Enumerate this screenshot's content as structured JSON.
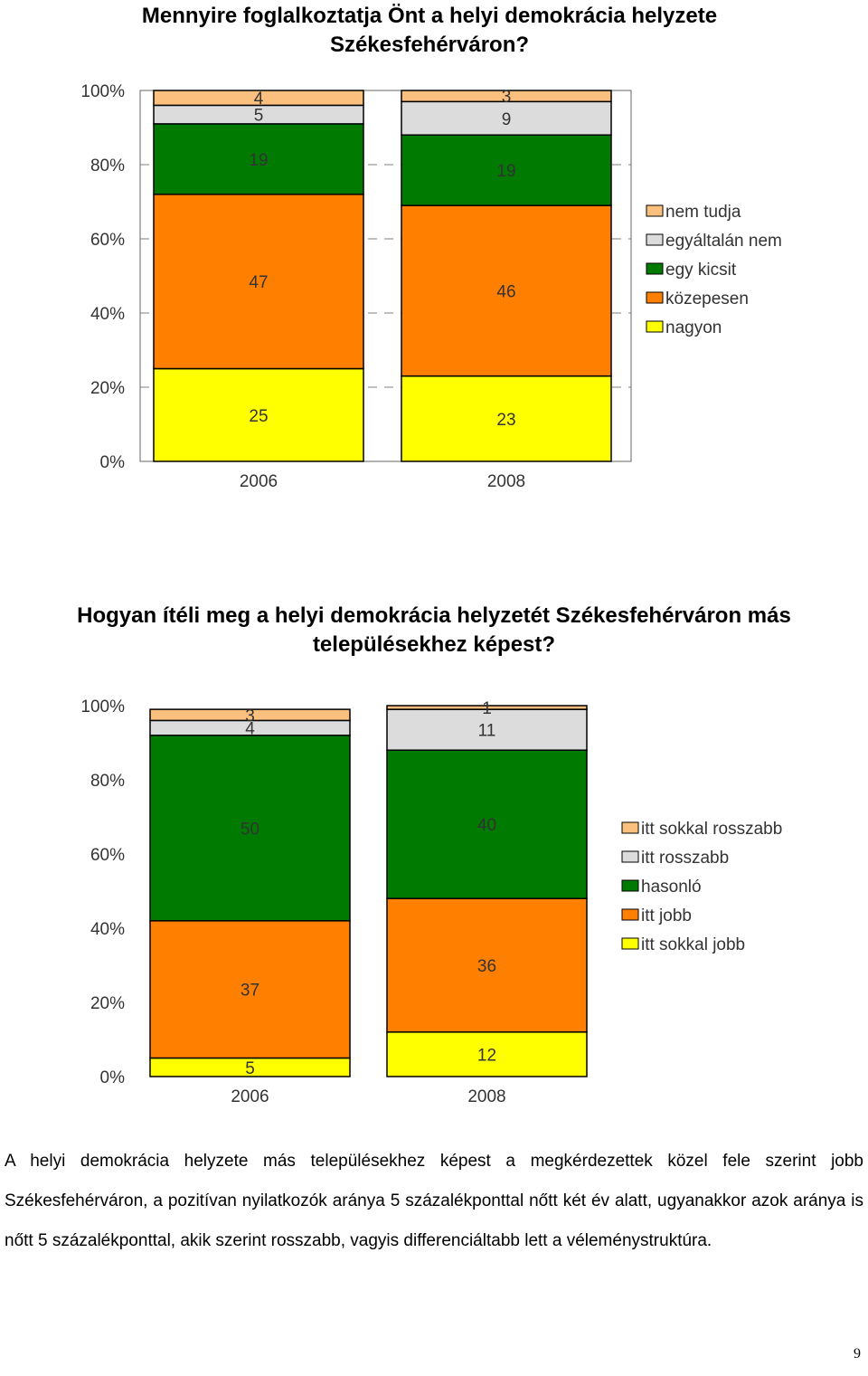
{
  "colors": {
    "nem_tudja": "#fcc07e",
    "egyaltalan_nem": "#dcdcdc",
    "egy_kicsit": "#007a00",
    "kozepesen": "#ff7f00",
    "nagyon": "#ffff00"
  },
  "chart_data": [
    {
      "type": "bar",
      "stacked": true,
      "percent_stacked": true,
      "title": "Mennyire foglalkoztatja Önt a helyi demokrácia helyzete Székesfehérváron?",
      "categories": [
        "2006",
        "2008"
      ],
      "series": [
        {
          "name": "nagyon",
          "values": [
            25,
            23
          ],
          "color": "#ffff00"
        },
        {
          "name": "közepesen",
          "values": [
            47,
            46
          ],
          "color": "#ff7f00"
        },
        {
          "name": "egy kicsit",
          "values": [
            19,
            19
          ],
          "color": "#007a00"
        },
        {
          "name": "egyáltalán nem",
          "values": [
            5,
            9
          ],
          "color": "#dcdcdc"
        },
        {
          "name": "nem tudja",
          "values": [
            4,
            3
          ],
          "color": "#fcc07e"
        }
      ],
      "legend_order": [
        "nem tudja",
        "egyáltalán nem",
        "egy kicsit",
        "közepesen",
        "nagyon"
      ],
      "ytick_labels": [
        "0%",
        "20%",
        "40%",
        "60%",
        "80%",
        "100%"
      ],
      "ylim": [
        0,
        100
      ],
      "grid": "dashed horizontal",
      "legend_position": "right"
    },
    {
      "type": "bar",
      "stacked": true,
      "percent_stacked": true,
      "title": "Hogyan ítéli meg a helyi demokrácia helyzetét Székesfehérváron más településekhez képest?",
      "categories": [
        "2006",
        "2008"
      ],
      "series": [
        {
          "name": "itt sokkal jobb",
          "values": [
            5,
            12
          ],
          "color": "#ffff00"
        },
        {
          "name": "itt jobb",
          "values": [
            37,
            36
          ],
          "color": "#ff7f00"
        },
        {
          "name": "hasonló",
          "values": [
            50,
            40
          ],
          "color": "#007a00"
        },
        {
          "name": "itt rosszabb",
          "values": [
            4,
            11
          ],
          "color": "#dcdcdc"
        },
        {
          "name": "itt sokkal rosszabb",
          "values": [
            3,
            1
          ],
          "color": "#fcc07e"
        }
      ],
      "legend_order": [
        "itt sokkal rosszabb",
        "itt rosszabb",
        "hasonló",
        "itt jobb",
        "itt sokkal jobb"
      ],
      "ytick_labels": [
        "0%",
        "20%",
        "40%",
        "60%",
        "80%",
        "100%"
      ],
      "ylim": [
        0,
        100
      ],
      "grid": "none",
      "legend_position": "right"
    }
  ],
  "text": {
    "paragraph": "A helyi demokrácia helyzete más településekhez képest a megkérdezettek közel fele szerint jobb Székesfehérváron, a pozitívan nyilatkozók aránya 5 százalékponttal nőtt két év alatt, ugyanakkor azok aránya is nőtt 5 százalékponttal, akik szerint rosszabb, vagyis differenciáltabb lett a véleménystruktúra.",
    "page_number": "9"
  }
}
